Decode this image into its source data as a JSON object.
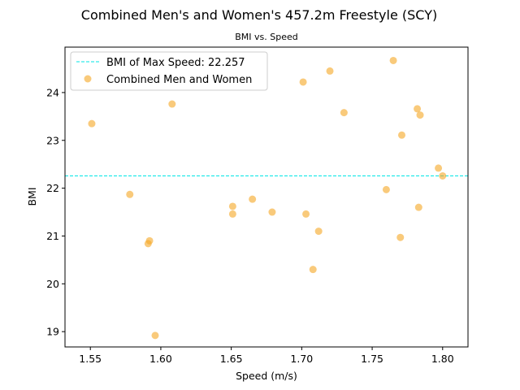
{
  "chart_data": {
    "type": "scatter",
    "title": "Combined Men's and Women's 457.2m Freestyle (SCY)",
    "subtitle": "BMI vs. Speed",
    "xlabel": "Speed (m/s)",
    "ylabel": "BMI",
    "xlim": [
      1.532,
      1.818
    ],
    "ylim": [
      18.68,
      24.95
    ],
    "xticks": [
      "1.55",
      "1.60",
      "1.65",
      "1.70",
      "1.75",
      "1.80"
    ],
    "yticks": [
      "19",
      "20",
      "21",
      "22",
      "23",
      "24"
    ],
    "grid": false,
    "legend_position": "top-left",
    "reference_line": {
      "label": "BMI of Max Speed: 22.257",
      "y": 22.257,
      "color": "#00e5e5",
      "style": "dashed"
    },
    "series": [
      {
        "name": "Combined Men and Women",
        "color": "#f5a623",
        "points": [
          {
            "x": 1.551,
            "y": 23.35
          },
          {
            "x": 1.578,
            "y": 21.87
          },
          {
            "x": 1.591,
            "y": 20.84
          },
          {
            "x": 1.592,
            "y": 20.9
          },
          {
            "x": 1.596,
            "y": 18.92
          },
          {
            "x": 1.608,
            "y": 23.76
          },
          {
            "x": 1.651,
            "y": 21.62
          },
          {
            "x": 1.651,
            "y": 21.46
          },
          {
            "x": 1.665,
            "y": 21.77
          },
          {
            "x": 1.679,
            "y": 21.5
          },
          {
            "x": 1.701,
            "y": 24.22
          },
          {
            "x": 1.703,
            "y": 21.46
          },
          {
            "x": 1.708,
            "y": 20.3
          },
          {
            "x": 1.712,
            "y": 21.1
          },
          {
            "x": 1.72,
            "y": 24.45
          },
          {
            "x": 1.73,
            "y": 23.58
          },
          {
            "x": 1.76,
            "y": 21.97
          },
          {
            "x": 1.765,
            "y": 24.67
          },
          {
            "x": 1.77,
            "y": 20.97
          },
          {
            "x": 1.771,
            "y": 23.11
          },
          {
            "x": 1.782,
            "y": 23.66
          },
          {
            "x": 1.783,
            "y": 21.6
          },
          {
            "x": 1.784,
            "y": 23.53
          },
          {
            "x": 1.797,
            "y": 22.42
          },
          {
            "x": 1.8,
            "y": 22.257
          }
        ]
      }
    ]
  }
}
